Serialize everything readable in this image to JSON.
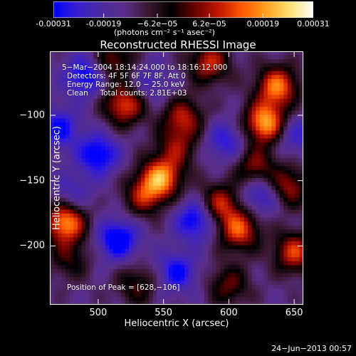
{
  "colorbar": {
    "ticks": [
      "-0.00031",
      "-0.00019",
      "−6.2e−05",
      "6.2e−05",
      "0.00019",
      "0.00031"
    ],
    "tick_values": [
      -0.00031,
      -0.00019,
      -6.2e-05,
      6.2e-05,
      0.00019,
      0.00031
    ],
    "range": [
      -0.00031,
      0.00031
    ],
    "units": "(photons cm⁻² s⁻¹ asec⁻²)",
    "colors": [
      "#0000ff",
      "#3a1fd0",
      "#4b2aa0",
      "#5a2f8a",
      "#3a1830",
      "#000000",
      "#6a0000",
      "#c01800",
      "#ff5a00",
      "#ffa020",
      "#ffe070",
      "#ffffff"
    ]
  },
  "chart_data": {
    "type": "heatmap",
    "title": "Reconstructed RHESSI Image",
    "xlabel": "Heliocentric X (arcsec)",
    "ylabel": "Heliocentric Y (arcsec)",
    "xlim": [
      463,
      657
    ],
    "ylim": [
      -245,
      -51
    ],
    "xticks": [
      500,
      550,
      600,
      650
    ],
    "yticks": [
      -100,
      -150,
      -200
    ],
    "annotations": [
      "5−Mar−2004 18:14:24.000 to 18:16:12.000",
      "Detectors: 4F 5F 6F 7F 8F, Att 0",
      "Energy Range: 12.0 − 25.0 keV",
      "Clean     Total counts: 2.81E+03"
    ],
    "peak_label": "Position of Peak = [628,−106]",
    "peak": [
      628,
      -106
    ],
    "sources": [
      {
        "x": 628,
        "y": -106,
        "amp": 1.0
      },
      {
        "x": 637,
        "y": -78,
        "amp": 0.85
      },
      {
        "x": 620,
        "y": -140,
        "amp": 0.55
      },
      {
        "x": 548,
        "y": -148,
        "amp": 0.9
      },
      {
        "x": 535,
        "y": -162,
        "amp": 0.55
      },
      {
        "x": 475,
        "y": -182,
        "amp": 0.95
      },
      {
        "x": 520,
        "y": -92,
        "amp": 0.75
      },
      {
        "x": 565,
        "y": -102,
        "amp": 0.6
      },
      {
        "x": 593,
        "y": -168,
        "amp": 0.65
      },
      {
        "x": 608,
        "y": -188,
        "amp": 0.75
      },
      {
        "x": 645,
        "y": -155,
        "amp": 0.6
      },
      {
        "x": 650,
        "y": -205,
        "amp": 0.7
      },
      {
        "x": 560,
        "y": -125,
        "amp": 0.45
      },
      {
        "x": 512,
        "y": -58,
        "amp": 0.5
      },
      {
        "x": 585,
        "y": -60,
        "amp": 0.65
      },
      {
        "x": 478,
        "y": -210,
        "amp": 0.35
      },
      {
        "x": 600,
        "y": -230,
        "amp": 0.45
      },
      {
        "x": 530,
        "y": -230,
        "amp": 0.4
      },
      {
        "x": 500,
        "y": -130,
        "amp": -0.6
      },
      {
        "x": 490,
        "y": -70,
        "amp": -0.55
      },
      {
        "x": 575,
        "y": -180,
        "amp": -0.6
      },
      {
        "x": 515,
        "y": -195,
        "amp": -0.65
      },
      {
        "x": 560,
        "y": -220,
        "amp": -0.5
      },
      {
        "x": 625,
        "y": -160,
        "amp": -0.5
      },
      {
        "x": 470,
        "y": -110,
        "amp": -0.5
      },
      {
        "x": 650,
        "y": -115,
        "amp": -0.35
      },
      {
        "x": 540,
        "y": -75,
        "amp": -0.3
      },
      {
        "x": 598,
        "y": -120,
        "amp": -0.4
      },
      {
        "x": 480,
        "y": -160,
        "amp": -0.3
      }
    ]
  },
  "footer": {
    "date": "24−Jun−2013 00:57"
  }
}
